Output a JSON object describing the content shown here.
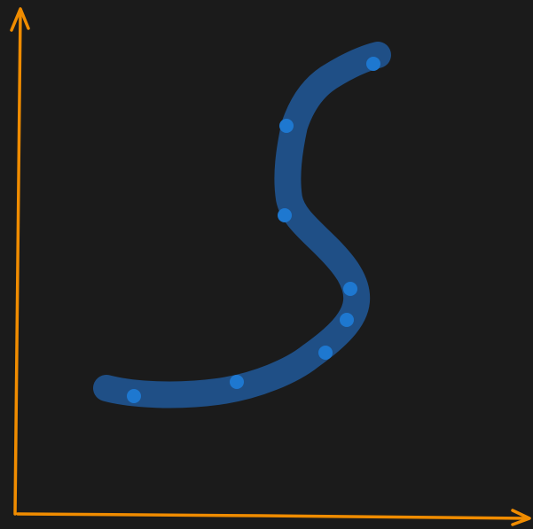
{
  "colors": {
    "background": "#1b1b1b",
    "axis": "#f08c00",
    "stroke": "#1f4f86",
    "point": "#1e78d0"
  }
}
